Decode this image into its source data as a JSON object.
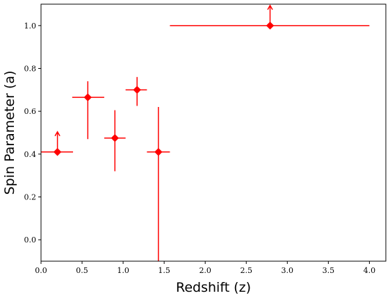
{
  "chart_data": {
    "type": "scatter",
    "title": "",
    "xlabel": "Redshift (z)",
    "ylabel": "Spin Parameter (a)",
    "xlim": [
      0.0,
      4.2
    ],
    "ylim": [
      -0.1,
      1.1
    ],
    "xticks": [
      "0.0",
      "0.5",
      "1.0",
      "1.5",
      "2.0",
      "2.5",
      "3.0",
      "3.5",
      "4.0"
    ],
    "yticks": [
      "0.0",
      "0.2",
      "0.4",
      "0.6",
      "0.8",
      "1.0"
    ],
    "grid": false,
    "legend": "none",
    "color": "#ff0000",
    "marker": "diamond",
    "points": [
      {
        "x": 0.2,
        "y": 0.41,
        "xlow": 0.0,
        "xhigh": 0.39,
        "ylow": 0.41,
        "yhigh": 0.41,
        "lower_limit": true
      },
      {
        "x": 0.57,
        "y": 0.665,
        "xlow": 0.38,
        "xhigh": 0.77,
        "ylow": 0.47,
        "yhigh": 0.74,
        "lower_limit": false
      },
      {
        "x": 0.9,
        "y": 0.475,
        "xlow": 0.77,
        "xhigh": 1.03,
        "ylow": 0.32,
        "yhigh": 0.605,
        "lower_limit": false
      },
      {
        "x": 1.17,
        "y": 0.7,
        "xlow": 1.03,
        "xhigh": 1.29,
        "ylow": 0.625,
        "yhigh": 0.76,
        "lower_limit": false
      },
      {
        "x": 1.43,
        "y": 0.41,
        "xlow": 1.29,
        "xhigh": 1.57,
        "ylow": -0.1,
        "yhigh": 0.62,
        "lower_limit": false
      },
      {
        "x": 2.79,
        "y": 1.0,
        "xlow": 1.57,
        "xhigh": 4.0,
        "ylow": 1.0,
        "yhigh": 1.0,
        "lower_limit": true
      }
    ]
  }
}
